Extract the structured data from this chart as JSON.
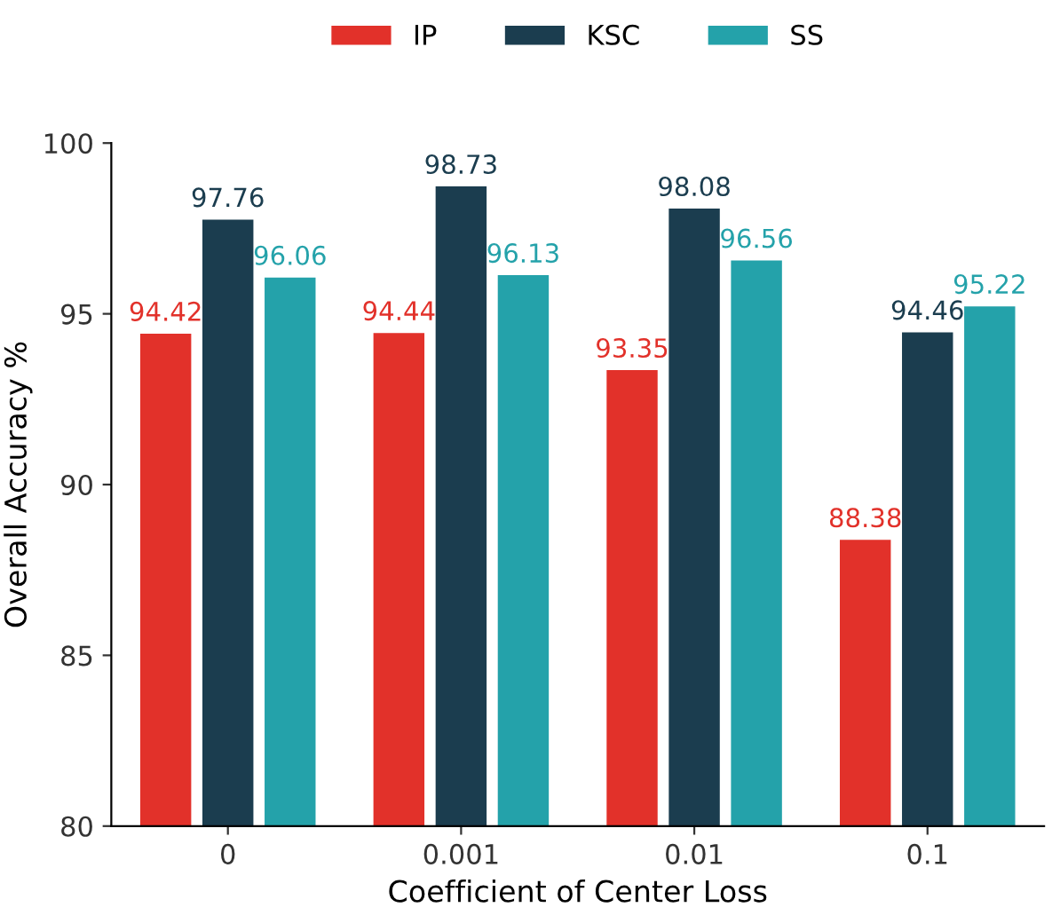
{
  "chart_data": {
    "type": "bar",
    "xlabel": "Coefficient of Center Loss",
    "ylabel": "Overall Accuracy %",
    "categories": [
      "0",
      "0.001",
      "0.01",
      "0.1"
    ],
    "series": [
      {
        "name": "IP",
        "color": "#e2312a",
        "values": [
          94.42,
          94.44,
          93.35,
          88.38
        ]
      },
      {
        "name": "KSC",
        "color": "#1b3d4f",
        "values": [
          97.76,
          98.73,
          98.08,
          94.46
        ]
      },
      {
        "name": "SS",
        "color": "#24a2aa",
        "values": [
          96.06,
          96.13,
          96.56,
          95.22
        ]
      }
    ],
    "ylim": [
      80,
      100
    ],
    "yticks": [
      80,
      85,
      90,
      95,
      100
    ],
    "data_labels": true,
    "grid": false,
    "legend": "top"
  }
}
